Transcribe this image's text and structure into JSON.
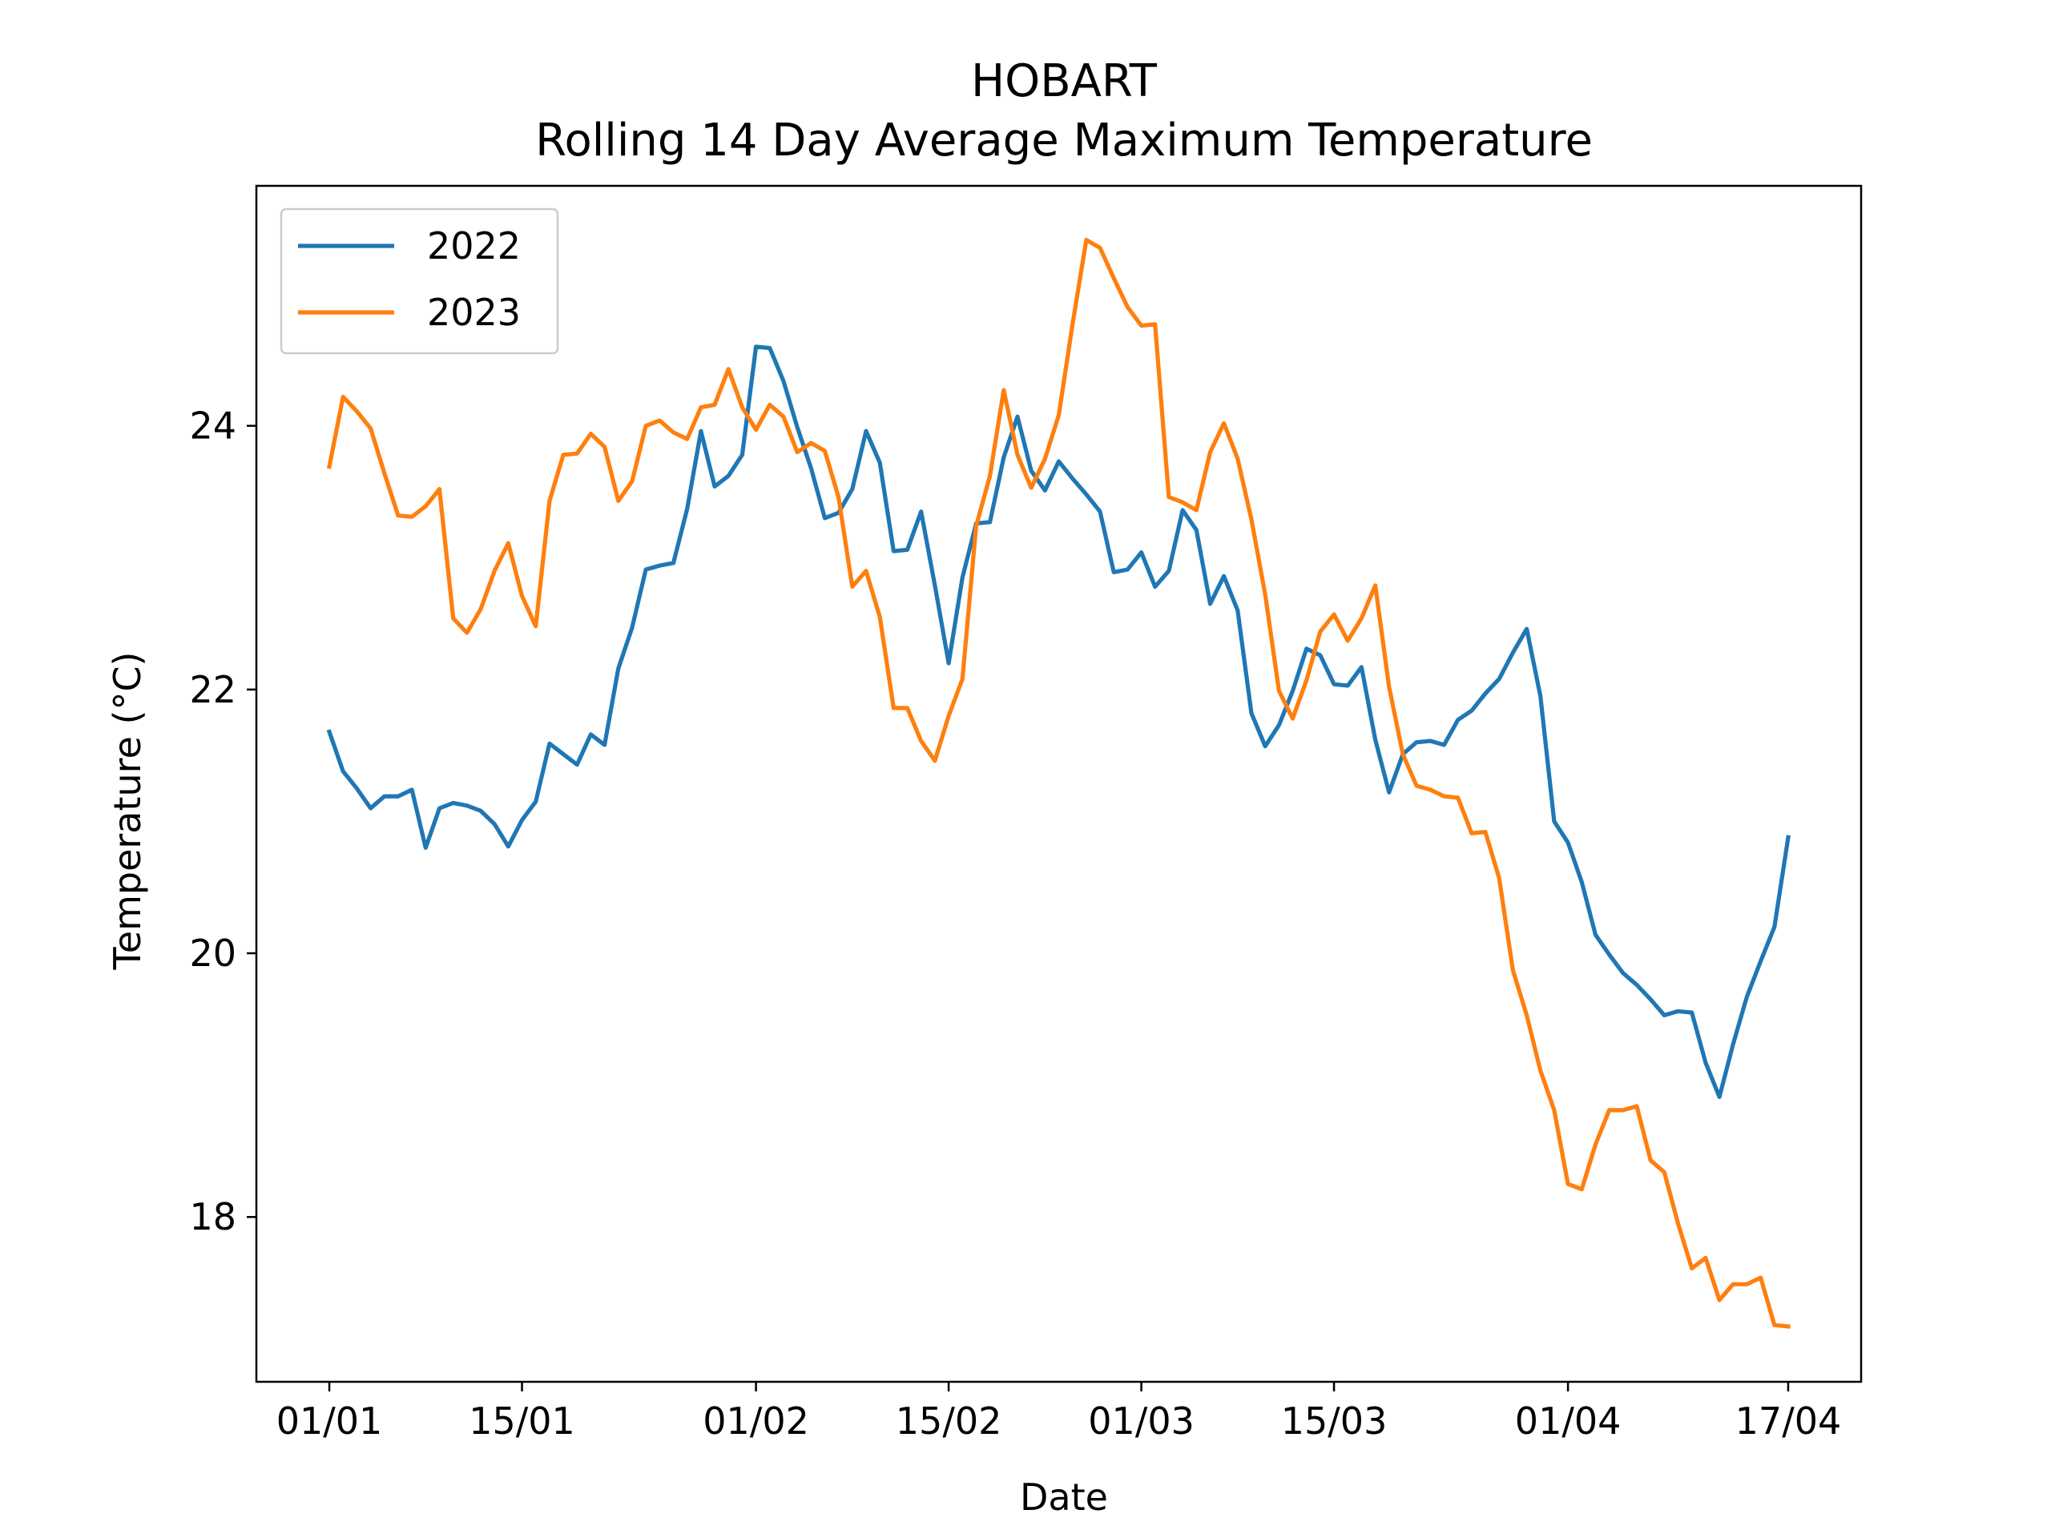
{
  "chart_data": {
    "type": "line",
    "title": "HOBART",
    "subtitle": "Rolling 14 Day Average Maximum Temperature",
    "xlabel": "Date",
    "ylabel": "Temperature (°C)",
    "x_ticks": [
      {
        "day": 0,
        "label": "01/01"
      },
      {
        "day": 14,
        "label": "15/01"
      },
      {
        "day": 31,
        "label": "01/02"
      },
      {
        "day": 45,
        "label": "15/02"
      },
      {
        "day": 59,
        "label": "01/03"
      },
      {
        "day": 73,
        "label": "15/03"
      },
      {
        "day": 90,
        "label": "01/04"
      },
      {
        "day": 106,
        "label": "17/04"
      }
    ],
    "y_ticks": [
      18,
      20,
      22,
      24
    ],
    "xlim": [
      -5.3,
      111.3
    ],
    "ylim": [
      16.75,
      25.82
    ],
    "grid": false,
    "legend_position": "top-left",
    "series": [
      {
        "name": "2022",
        "color": "#1f77b4",
        "values": [
          21.68,
          21.38,
          21.25,
          21.1,
          21.19,
          21.19,
          21.24,
          20.8,
          21.1,
          21.14,
          21.12,
          21.08,
          20.98,
          20.81,
          21.01,
          21.15,
          21.59,
          21.51,
          21.43,
          21.66,
          21.58,
          22.16,
          22.47,
          22.91,
          22.94,
          22.96,
          23.37,
          23.96,
          23.54,
          23.62,
          23.78,
          24.6,
          24.59,
          24.34,
          23.99,
          23.68,
          23.3,
          23.34,
          23.52,
          23.96,
          23.72,
          23.05,
          23.06,
          23.35,
          22.79,
          22.2,
          22.85,
          23.26,
          23.27,
          23.76,
          24.07,
          23.66,
          23.51,
          23.73,
          23.6,
          23.48,
          23.35,
          22.89,
          22.91,
          23.04,
          22.78,
          22.9,
          23.36,
          23.21,
          22.65,
          22.86,
          22.6,
          21.82,
          21.57,
          21.73,
          21.99,
          22.31,
          22.26,
          22.04,
          22.03,
          22.17,
          21.62,
          21.22,
          21.51,
          21.6,
          21.61,
          21.58,
          21.77,
          21.84,
          21.97,
          22.08,
          22.28,
          22.46,
          21.95,
          21.0,
          20.84,
          20.54,
          20.14,
          19.99,
          19.85,
          19.76,
          19.65,
          19.53,
          19.56,
          19.55,
          19.17,
          18.91,
          19.31,
          19.67,
          19.94,
          20.2,
          20.88
        ]
      },
      {
        "name": "2023",
        "color": "#ff7f0e",
        "values": [
          23.69,
          24.22,
          24.11,
          23.98,
          23.64,
          23.32,
          23.31,
          23.39,
          23.52,
          22.54,
          22.43,
          22.61,
          22.9,
          23.11,
          22.71,
          22.48,
          23.43,
          23.78,
          23.79,
          23.94,
          23.84,
          23.43,
          23.58,
          24.0,
          24.04,
          23.95,
          23.9,
          24.14,
          24.16,
          24.43,
          24.14,
          23.97,
          24.16,
          24.07,
          23.8,
          23.87,
          23.81,
          23.46,
          22.78,
          22.9,
          22.55,
          21.86,
          21.86,
          21.61,
          21.46,
          21.8,
          22.08,
          23.24,
          23.62,
          24.27,
          23.78,
          23.53,
          23.75,
          24.08,
          24.77,
          25.41,
          25.35,
          25.12,
          24.9,
          24.76,
          24.77,
          23.46,
          23.42,
          23.36,
          23.8,
          24.02,
          23.75,
          23.29,
          22.72,
          21.99,
          21.78,
          22.07,
          22.44,
          22.57,
          22.37,
          22.54,
          22.79,
          22.02,
          21.51,
          21.27,
          21.24,
          21.19,
          21.18,
          20.91,
          20.92,
          20.57,
          19.87,
          19.53,
          19.11,
          18.81,
          18.25,
          18.21,
          18.55,
          18.81,
          18.81,
          18.84,
          18.43,
          18.34,
          17.95,
          17.61,
          17.69,
          17.37,
          17.49,
          17.49,
          17.54,
          17.18,
          17.17
        ]
      }
    ]
  }
}
